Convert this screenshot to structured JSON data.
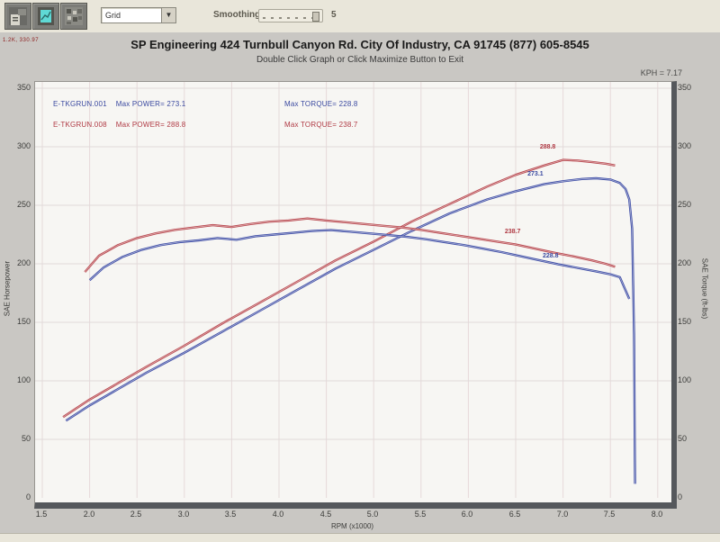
{
  "toolbar": {
    "view_dropdown": {
      "value": "Grid"
    },
    "smoothing": {
      "label": "Smoothing",
      "value": "5"
    }
  },
  "header": {
    "corner_note": "1.2K, 330.97",
    "title": "SP Engineering 424 Turnbull Canyon Rd. City Of Industry, CA 91745 (877) 605-8545",
    "subtitle": "Double Click Graph or Click Maximize Button to Exit",
    "speed_readout": "KPH = 7.17"
  },
  "legend": {
    "rows": [
      {
        "run": "E-TKGRUN.001",
        "power": "Max POWER= 273.1",
        "torque": "Max TORQUE= 228.8",
        "color": "#3a49a0"
      },
      {
        "run": "E-TKGRUN.008",
        "power": "Max POWER= 288.8",
        "torque": "Max TORQUE= 238.7",
        "color": "#b03a44"
      }
    ]
  },
  "chart_data": {
    "type": "line",
    "title": "SP Engineering dyno runs",
    "xlabel": "RPM (x1000)",
    "ylabel_left": "SAE Horsepower",
    "ylabel_right": "SAE Torque (ft-lbs)",
    "xlim": [
      1.42,
      8.15
    ],
    "ylim": [
      0,
      350
    ],
    "xticks": [
      "1.5",
      "2.0",
      "2.5",
      "3.0",
      "3.5",
      "4.0",
      "4.5",
      "5.0",
      "5.5",
      "6.0",
      "6.5",
      "7.0",
      "7.5",
      "8.0"
    ],
    "yticks": [
      0,
      50,
      100,
      150,
      200,
      250,
      300,
      350
    ],
    "grid": true,
    "legend_position": "top-inside",
    "colors": {
      "run001": "#3c4ba6",
      "run008": "#b8444c"
    },
    "series": [
      {
        "name": "E-TKGRUN.008 Power (HP)",
        "color": "#b8444c",
        "x": [
          1.72,
          2.0,
          2.3,
          2.6,
          3.0,
          3.4,
          3.8,
          4.2,
          4.6,
          5.0,
          5.4,
          5.8,
          6.2,
          6.5,
          6.8,
          7.0,
          7.15,
          7.3,
          7.45,
          7.55
        ],
        "y": [
          69,
          84,
          98,
          112,
          130,
          149,
          167,
          185,
          203,
          219,
          236,
          251,
          266,
          276,
          284,
          288.8,
          288.2,
          287,
          285.5,
          284
        ]
      },
      {
        "name": "E-TKGRUN.001 Power (HP)",
        "color": "#3c4ba6",
        "x": [
          1.75,
          2.0,
          2.3,
          2.6,
          3.0,
          3.4,
          3.8,
          4.2,
          4.6,
          5.0,
          5.4,
          5.8,
          6.2,
          6.5,
          6.8,
          7.0,
          7.2,
          7.35,
          7.5,
          7.6,
          7.66,
          7.7,
          7.73,
          7.75,
          7.76
        ],
        "y": [
          66,
          79,
          93,
          107,
          124,
          142,
          160,
          178,
          196,
          212,
          228,
          243,
          255,
          262,
          268,
          270.5,
          272.5,
          273.1,
          272,
          269,
          264,
          255,
          230,
          140,
          12
        ]
      },
      {
        "name": "E-TKGRUN.008 Torque (ft-lbs)",
        "color": "#b8444c",
        "x": [
          1.95,
          2.1,
          2.3,
          2.5,
          2.7,
          2.9,
          3.1,
          3.3,
          3.5,
          3.7,
          3.9,
          4.1,
          4.3,
          4.5,
          4.7,
          4.9,
          5.1,
          5.3,
          5.5,
          5.7,
          5.9,
          6.1,
          6.3,
          6.5,
          6.7,
          6.9,
          7.1,
          7.3,
          7.45,
          7.55
        ],
        "y": [
          193,
          207,
          216,
          222,
          226,
          229,
          231,
          233,
          231.5,
          234,
          236,
          237,
          238.7,
          237,
          235.5,
          234,
          232.5,
          231,
          229,
          226.5,
          224,
          221.5,
          219,
          216.5,
          213,
          209.5,
          206.5,
          203,
          200,
          197.5
        ]
      },
      {
        "name": "E-TKGRUN.001 Torque (ft-lbs)",
        "color": "#3c4ba6",
        "x": [
          2.0,
          2.15,
          2.35,
          2.55,
          2.75,
          2.95,
          3.15,
          3.35,
          3.55,
          3.75,
          3.95,
          4.15,
          4.35,
          4.55,
          4.75,
          4.95,
          5.15,
          5.35,
          5.55,
          5.75,
          5.95,
          6.15,
          6.35,
          6.55,
          6.75,
          6.95,
          7.15,
          7.35,
          7.5,
          7.6,
          7.7
        ],
        "y": [
          186,
          197,
          206,
          212,
          216,
          218.5,
          220,
          222,
          220.5,
          223.5,
          225,
          226.5,
          228,
          228.8,
          227.5,
          226,
          224.5,
          223,
          221,
          218.5,
          216,
          213,
          210,
          206.5,
          203,
          199.5,
          196.5,
          193.5,
          191,
          188.5,
          170
        ]
      }
    ],
    "max_values": {
      "run001_power": 273.1,
      "run001_torque": 228.8,
      "run008_power": 288.8,
      "run008_torque": 238.7
    },
    "annotations": [
      {
        "text": "288.8",
        "rpm": 6.85,
        "value": 299,
        "color": "#b03a44"
      },
      {
        "text": "273.1",
        "rpm": 6.72,
        "value": 276,
        "color": "#3a49a0"
      },
      {
        "text": "238.7",
        "rpm": 6.48,
        "value": 227,
        "color": "#b03a44"
      },
      {
        "text": "228.8",
        "rpm": 6.88,
        "value": 206,
        "color": "#3a49a0"
      }
    ]
  }
}
